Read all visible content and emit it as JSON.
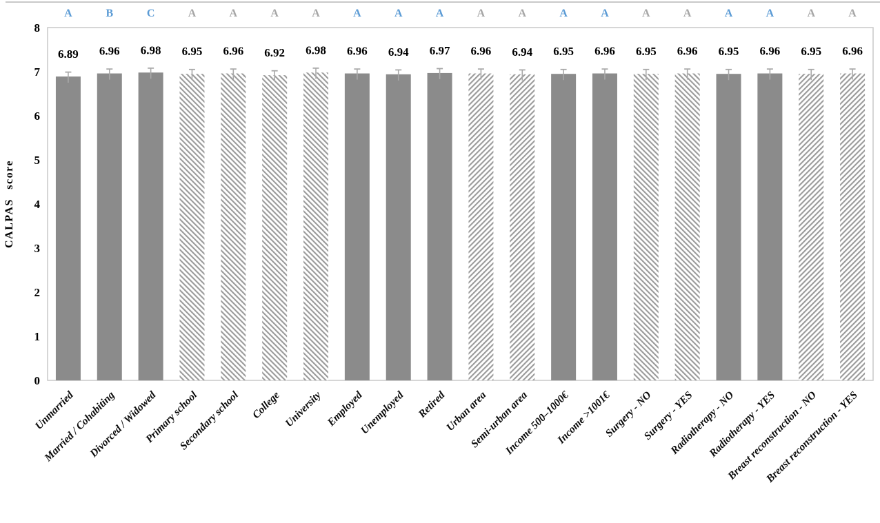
{
  "colors": {
    "bar_solid": "#8b8b8b",
    "hatch_stripe": "#9a9a9a",
    "hatch_background": "#ffffff",
    "letter_blue": "#5b9bd5",
    "letter_gray": "#a6a6a6",
    "error_bar": "#a9a9a9",
    "plot_border": "#c9c9c9",
    "top_rule": "#c9c9c9",
    "label_text": "#000000"
  },
  "chart_data": {
    "type": "bar",
    "title": "",
    "xlabel": "",
    "ylabel": "CALPAS score",
    "ylim": [
      0,
      8
    ],
    "yticks": [
      0,
      1,
      2,
      3,
      4,
      5,
      6,
      7,
      8
    ],
    "grid": false,
    "legend_position": "none",
    "error_bar": 0.1,
    "categories": [
      "Unmarried",
      "Married / Cohabiting",
      "Divorced / Widowed",
      "Primary school",
      "Secondary school",
      "College",
      "University",
      "Employed",
      "Unemployed",
      "Retired",
      "Urban area",
      "Semi-urban area",
      "Income 500–1000€",
      "Income >1001€",
      "Surgery - NO",
      "Surgery - YES",
      "Radiotherapy - NO",
      "Radiotherapy - YES",
      "Breast reconstruction - NO",
      "Breast reconstruction - YES"
    ],
    "values": [
      6.89,
      6.96,
      6.98,
      6.95,
      6.96,
      6.92,
      6.98,
      6.96,
      6.94,
      6.97,
      6.96,
      6.94,
      6.95,
      6.96,
      6.95,
      6.96,
      6.95,
      6.96,
      6.95,
      6.96
    ],
    "significance_letters": [
      "A",
      "B",
      "C",
      "A",
      "A",
      "A",
      "A",
      "A",
      "A",
      "A",
      "A",
      "A",
      "A",
      "A",
      "A",
      "A",
      "A",
      "A",
      "A",
      "A"
    ],
    "letter_colors": [
      "blue",
      "blue",
      "blue",
      "gray",
      "gray",
      "gray",
      "gray",
      "blue",
      "blue",
      "blue",
      "gray",
      "gray",
      "blue",
      "blue",
      "gray",
      "gray",
      "blue",
      "blue",
      "gray",
      "gray"
    ],
    "bar_styles": [
      "solid",
      "solid",
      "solid",
      "hatch-down",
      "hatch-down",
      "hatch-down",
      "hatch-down",
      "solid",
      "solid",
      "solid",
      "hatch-up",
      "hatch-up",
      "solid",
      "solid",
      "hatch-down",
      "hatch-down",
      "solid",
      "solid",
      "hatch-up",
      "hatch-up"
    ]
  }
}
